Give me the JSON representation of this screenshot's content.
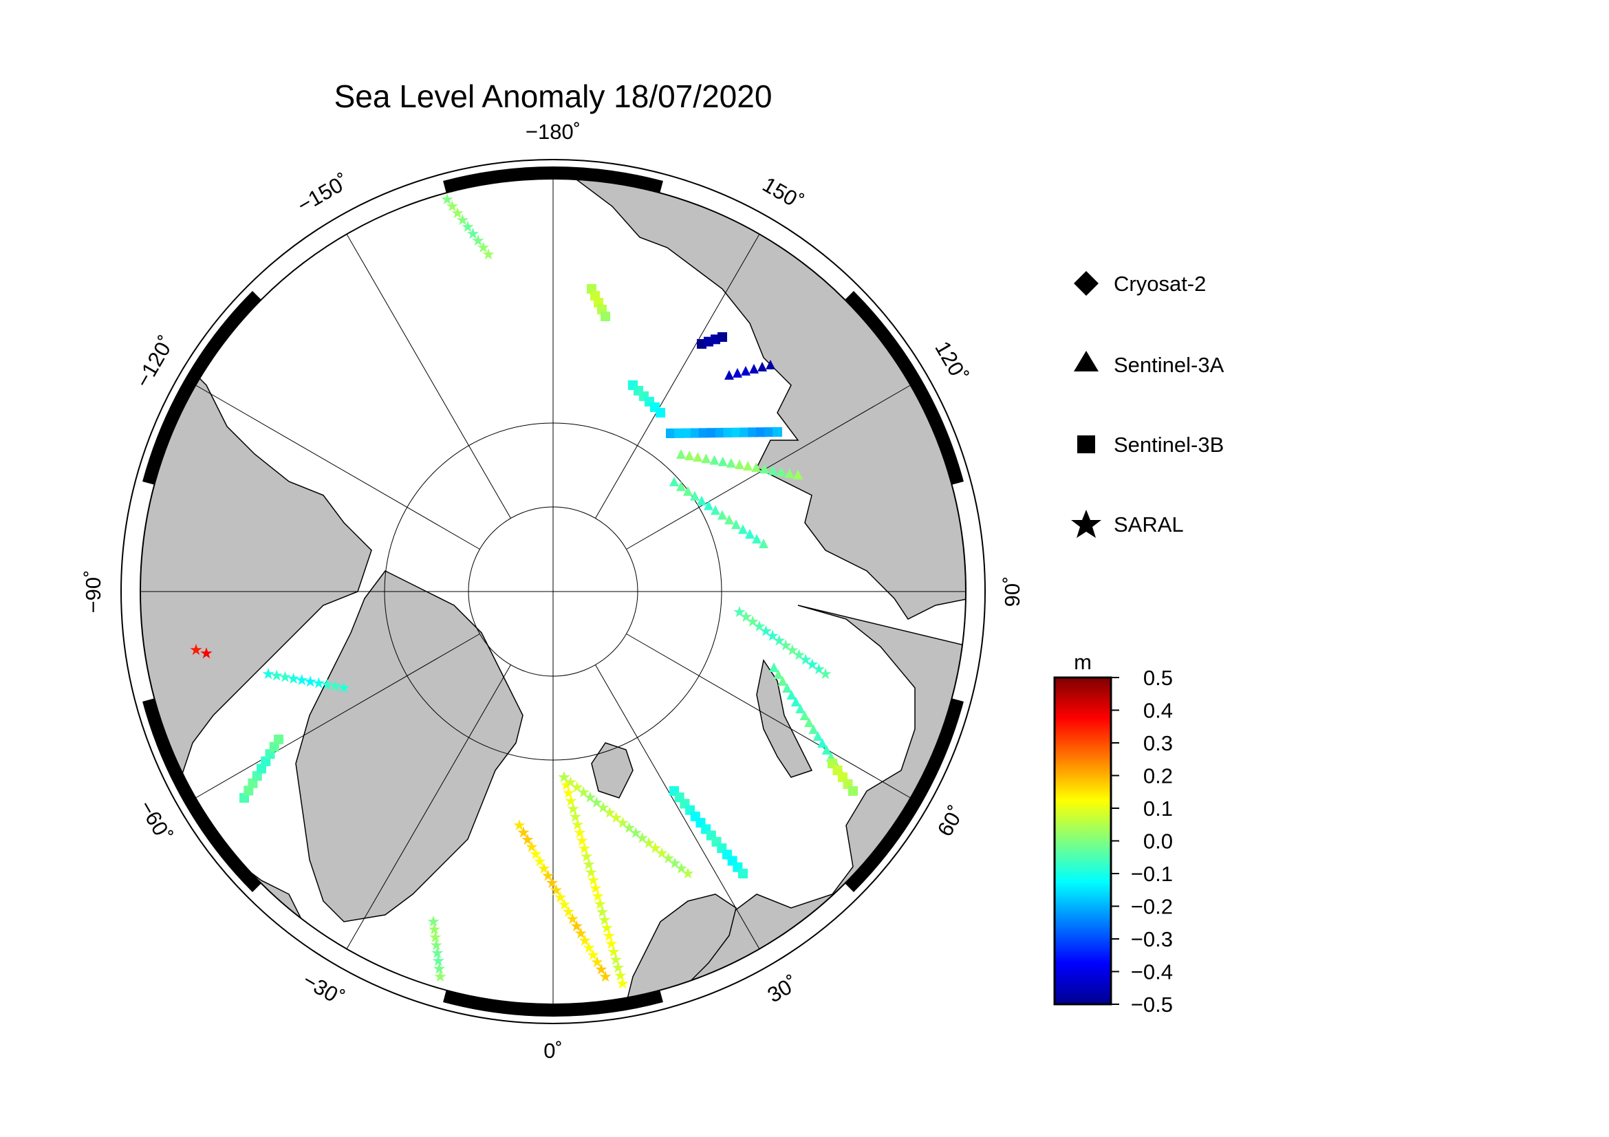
{
  "title": "Sea Level Anomaly 18/07/2020",
  "map": {
    "projection": "north-polar-stereographic",
    "land_color": "#c0c0c0",
    "ocean_color": "#ffffff",
    "longitude_labels": [
      {
        "lon": -180,
        "text": "−180˚"
      },
      {
        "lon": 150,
        "text": "150˚"
      },
      {
        "lon": 120,
        "text": "120˚"
      },
      {
        "lon": 90,
        "text": "90˚"
      },
      {
        "lon": 60,
        "text": "60˚"
      },
      {
        "lon": 30,
        "text": "30˚"
      },
      {
        "lon": 0,
        "text": "0˚"
      },
      {
        "lon": -30,
        "text": "−30˚"
      },
      {
        "lon": -60,
        "text": "−60˚"
      },
      {
        "lon": -90,
        "text": "−90˚"
      },
      {
        "lon": -120,
        "text": "−120˚"
      },
      {
        "lon": -150,
        "text": "−150˚"
      }
    ]
  },
  "legend": {
    "items": [
      {
        "label": "Cryosat-2",
        "symbol": "diamond"
      },
      {
        "label": "Sentinel-3A",
        "symbol": "triangle"
      },
      {
        "label": "Sentinel-3B",
        "symbol": "square"
      },
      {
        "label": "SARAL",
        "symbol": "star"
      }
    ]
  },
  "colorbar": {
    "unit": "m",
    "min": -0.5,
    "max": 0.5,
    "ticks": [
      "0.5",
      "0.4",
      "0.3",
      "0.2",
      "0.1",
      "0.0",
      "−0.1",
      "−0.2",
      "−0.3",
      "−0.4",
      "−0.5"
    ],
    "colors": [
      "#00008f",
      "#0000ff",
      "#007fff",
      "#00ffff",
      "#7fff7f",
      "#ffff00",
      "#ff7f00",
      "#ff0000",
      "#7f0000"
    ]
  },
  "chart_data": {
    "type": "scatter",
    "title": "Sea Level Anomaly 18/07/2020",
    "value_unit": "m",
    "value_range": [
      -0.5,
      0.5
    ],
    "series": [
      {
        "name": "Cryosat-2",
        "marker": "diamond",
        "values": []
      },
      {
        "name": "Sentinel-3A",
        "marker": "triangle",
        "values": [
          0.0,
          -0.05,
          -0.1,
          0.05,
          -0.45,
          0.0,
          0.0,
          -0.1
        ]
      },
      {
        "name": "Sentinel-3B",
        "marker": "square",
        "values": [
          -0.1,
          -0.5,
          -0.2,
          0.1,
          0.05,
          0.0
        ]
      },
      {
        "name": "SARAL",
        "marker": "star",
        "values": [
          0.35,
          0.25,
          0.1,
          0.2,
          0.05,
          -0.05
        ]
      }
    ]
  }
}
